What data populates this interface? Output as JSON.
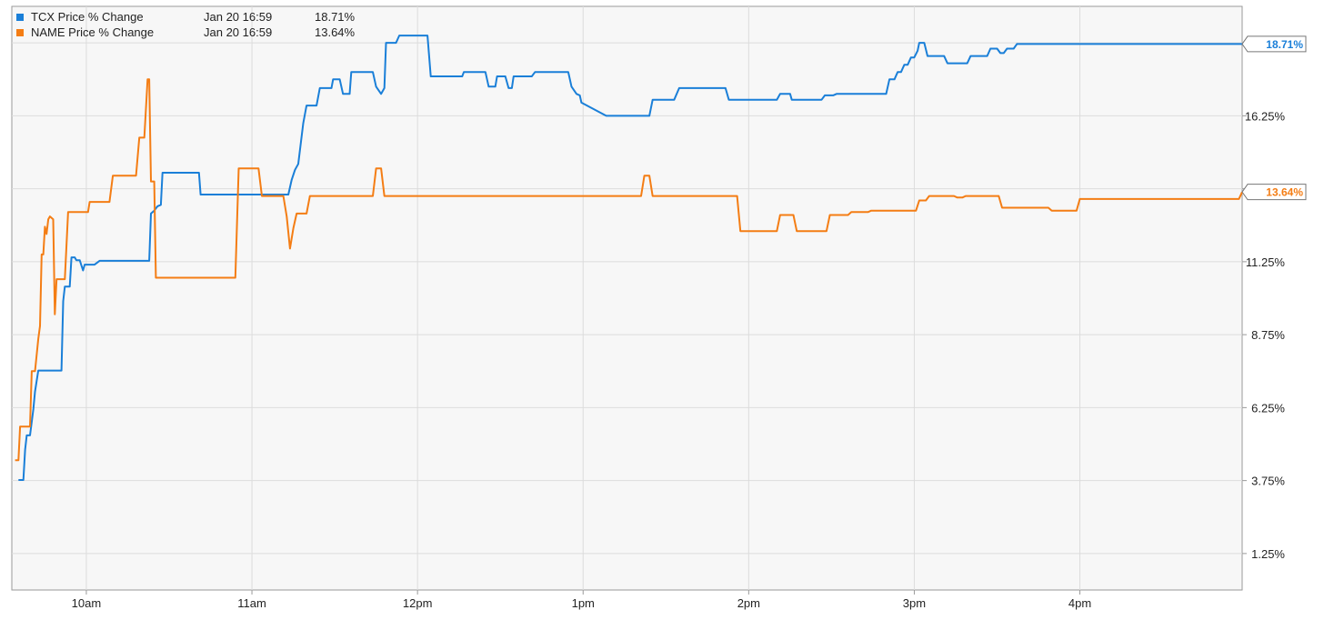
{
  "legend": [
    {
      "name": "TCX Price % Change",
      "time": "Jan 20 16:59",
      "value": "18.71%",
      "color": "#1a7fd8"
    },
    {
      "name": "NAME Price % Change",
      "time": "Jan 20 16:59",
      "value": "13.64%",
      "color": "#f47d14"
    }
  ],
  "chart_data": {
    "type": "line",
    "title": "",
    "xlabel": "",
    "ylabel": "",
    "x_tick_labels": [
      "10am",
      "11am",
      "12pm",
      "1pm",
      "2pm",
      "3pm",
      "4pm"
    ],
    "y_tick_labels": [
      "1.25%",
      "3.75%",
      "6.25%",
      "8.75%",
      "11.25%",
      "16.25%"
    ],
    "y_ticks": [
      1.25,
      3.75,
      6.25,
      8.75,
      11.25,
      13.75,
      16.25,
      18.75
    ],
    "xlim": [
      9.55,
      16.98
    ],
    "ylim": [
      0.0,
      20.0
    ],
    "grid": true,
    "legend_position": "top-left",
    "series": [
      {
        "name": "TCX Price % Change",
        "color": "#1a7fd8",
        "end_label": "18.71%",
        "points": [
          [
            9.59,
            3.77
          ],
          [
            9.62,
            3.77
          ],
          [
            9.63,
            4.8
          ],
          [
            9.64,
            5.3
          ],
          [
            9.66,
            5.3
          ],
          [
            9.68,
            6.2
          ],
          [
            9.69,
            6.8
          ],
          [
            9.71,
            7.52
          ],
          [
            9.85,
            7.52
          ],
          [
            9.86,
            9.9
          ],
          [
            9.87,
            10.4
          ],
          [
            9.9,
            10.4
          ],
          [
            9.91,
            11.4
          ],
          [
            9.93,
            11.4
          ],
          [
            9.94,
            11.3
          ],
          [
            9.96,
            11.3
          ],
          [
            9.98,
            10.95
          ],
          [
            9.99,
            11.15
          ],
          [
            10.05,
            11.15
          ],
          [
            10.08,
            11.28
          ],
          [
            10.38,
            11.28
          ],
          [
            10.39,
            12.9
          ],
          [
            10.41,
            13.0
          ],
          [
            10.43,
            13.15
          ],
          [
            10.45,
            13.2
          ],
          [
            10.46,
            14.3
          ],
          [
            10.68,
            14.3
          ],
          [
            10.69,
            13.55
          ],
          [
            10.88,
            13.55
          ],
          [
            10.89,
            13.55
          ],
          [
            11.22,
            13.55
          ],
          [
            11.24,
            14.05
          ],
          [
            11.26,
            14.4
          ],
          [
            11.28,
            14.6
          ],
          [
            11.31,
            16.0
          ],
          [
            11.33,
            16.6
          ],
          [
            11.39,
            16.6
          ],
          [
            11.41,
            17.2
          ],
          [
            11.48,
            17.2
          ],
          [
            11.49,
            17.5
          ],
          [
            11.53,
            17.5
          ],
          [
            11.55,
            17.0
          ],
          [
            11.59,
            17.0
          ],
          [
            11.6,
            17.75
          ],
          [
            11.73,
            17.75
          ],
          [
            11.75,
            17.25
          ],
          [
            11.78,
            17.0
          ],
          [
            11.8,
            17.2
          ],
          [
            11.81,
            18.75
          ],
          [
            11.87,
            18.75
          ],
          [
            11.89,
            19.0
          ],
          [
            12.06,
            19.0
          ],
          [
            12.08,
            17.6
          ],
          [
            12.27,
            17.6
          ],
          [
            12.28,
            17.75
          ],
          [
            12.41,
            17.75
          ],
          [
            12.43,
            17.25
          ],
          [
            12.47,
            17.25
          ],
          [
            12.48,
            17.6
          ],
          [
            12.53,
            17.6
          ],
          [
            12.55,
            17.2
          ],
          [
            12.57,
            17.2
          ],
          [
            12.58,
            17.6
          ],
          [
            12.69,
            17.6
          ],
          [
            12.71,
            17.75
          ],
          [
            12.91,
            17.75
          ],
          [
            12.93,
            17.25
          ],
          [
            12.96,
            17.0
          ],
          [
            12.98,
            16.95
          ],
          [
            12.99,
            16.7
          ],
          [
            13.14,
            16.25
          ],
          [
            13.4,
            16.25
          ],
          [
            13.42,
            16.8
          ],
          [
            13.55,
            16.8
          ],
          [
            13.58,
            17.2
          ],
          [
            13.86,
            17.2
          ],
          [
            13.88,
            16.8
          ],
          [
            14.17,
            16.8
          ],
          [
            14.19,
            17.0
          ],
          [
            14.25,
            17.0
          ],
          [
            14.26,
            16.8
          ],
          [
            14.44,
            16.8
          ],
          [
            14.46,
            16.95
          ],
          [
            14.51,
            16.95
          ],
          [
            14.53,
            17.0
          ],
          [
            14.83,
            17.0
          ],
          [
            14.85,
            17.5
          ],
          [
            14.88,
            17.5
          ],
          [
            14.9,
            17.75
          ],
          [
            14.92,
            17.75
          ],
          [
            14.94,
            18.0
          ],
          [
            14.96,
            18.0
          ],
          [
            14.98,
            18.25
          ],
          [
            15.0,
            18.25
          ],
          [
            15.02,
            18.48
          ],
          [
            15.03,
            18.75
          ],
          [
            15.06,
            18.75
          ],
          [
            15.08,
            18.3
          ],
          [
            15.18,
            18.3
          ],
          [
            15.2,
            18.05
          ],
          [
            15.32,
            18.05
          ],
          [
            15.34,
            18.3
          ],
          [
            15.44,
            18.3
          ],
          [
            15.46,
            18.55
          ],
          [
            15.5,
            18.55
          ],
          [
            15.52,
            18.4
          ],
          [
            15.54,
            18.4
          ],
          [
            15.56,
            18.55
          ],
          [
            15.6,
            18.55
          ],
          [
            15.62,
            18.71
          ],
          [
            16.98,
            18.71
          ]
        ]
      },
      {
        "name": "NAME Price % Change",
        "color": "#f47d14",
        "end_label": "13.64%",
        "points": [
          [
            9.57,
            4.45
          ],
          [
            9.59,
            4.45
          ],
          [
            9.6,
            5.6
          ],
          [
            9.66,
            5.6
          ],
          [
            9.67,
            7.5
          ],
          [
            9.69,
            7.5
          ],
          [
            9.71,
            8.6
          ],
          [
            9.72,
            9.05
          ],
          [
            9.73,
            11.5
          ],
          [
            9.74,
            11.5
          ],
          [
            9.75,
            12.45
          ],
          [
            9.76,
            12.2
          ],
          [
            9.77,
            12.7
          ],
          [
            9.78,
            12.8
          ],
          [
            9.8,
            12.7
          ],
          [
            9.81,
            9.45
          ],
          [
            9.82,
            10.65
          ],
          [
            9.87,
            10.65
          ],
          [
            9.89,
            12.95
          ],
          [
            10.01,
            12.95
          ],
          [
            10.02,
            13.3
          ],
          [
            10.14,
            13.3
          ],
          [
            10.16,
            14.2
          ],
          [
            10.3,
            14.2
          ],
          [
            10.32,
            15.5
          ],
          [
            10.35,
            15.5
          ],
          [
            10.37,
            17.5
          ],
          [
            10.38,
            17.5
          ],
          [
            10.39,
            14.0
          ],
          [
            10.41,
            14.0
          ],
          [
            10.42,
            10.7
          ],
          [
            10.9,
            10.7
          ],
          [
            10.92,
            14.45
          ],
          [
            11.04,
            14.45
          ],
          [
            11.06,
            13.5
          ],
          [
            11.19,
            13.5
          ],
          [
            11.21,
            12.8
          ],
          [
            11.23,
            11.7
          ],
          [
            11.25,
            12.4
          ],
          [
            11.27,
            12.9
          ],
          [
            11.33,
            12.9
          ],
          [
            11.35,
            13.5
          ],
          [
            11.73,
            13.5
          ],
          [
            11.75,
            14.45
          ],
          [
            11.78,
            14.45
          ],
          [
            11.8,
            13.5
          ],
          [
            13.35,
            13.5
          ],
          [
            13.37,
            14.2
          ],
          [
            13.4,
            14.2
          ],
          [
            13.42,
            13.5
          ],
          [
            13.93,
            13.5
          ],
          [
            13.95,
            12.3
          ],
          [
            14.17,
            12.3
          ],
          [
            14.19,
            12.85
          ],
          [
            14.27,
            12.85
          ],
          [
            14.29,
            12.3
          ],
          [
            14.47,
            12.3
          ],
          [
            14.49,
            12.85
          ],
          [
            14.6,
            12.85
          ],
          [
            14.62,
            12.95
          ],
          [
            14.72,
            12.95
          ],
          [
            14.74,
            13.0
          ],
          [
            15.01,
            13.0
          ],
          [
            15.03,
            13.35
          ],
          [
            15.07,
            13.35
          ],
          [
            15.09,
            13.5
          ],
          [
            15.24,
            13.5
          ],
          [
            15.26,
            13.45
          ],
          [
            15.29,
            13.45
          ],
          [
            15.31,
            13.5
          ],
          [
            15.51,
            13.5
          ],
          [
            15.53,
            13.1
          ],
          [
            15.81,
            13.1
          ],
          [
            15.83,
            13.0
          ],
          [
            15.98,
            13.0
          ],
          [
            16.0,
            13.4
          ],
          [
            16.96,
            13.4
          ],
          [
            16.98,
            13.64
          ]
        ]
      }
    ]
  }
}
